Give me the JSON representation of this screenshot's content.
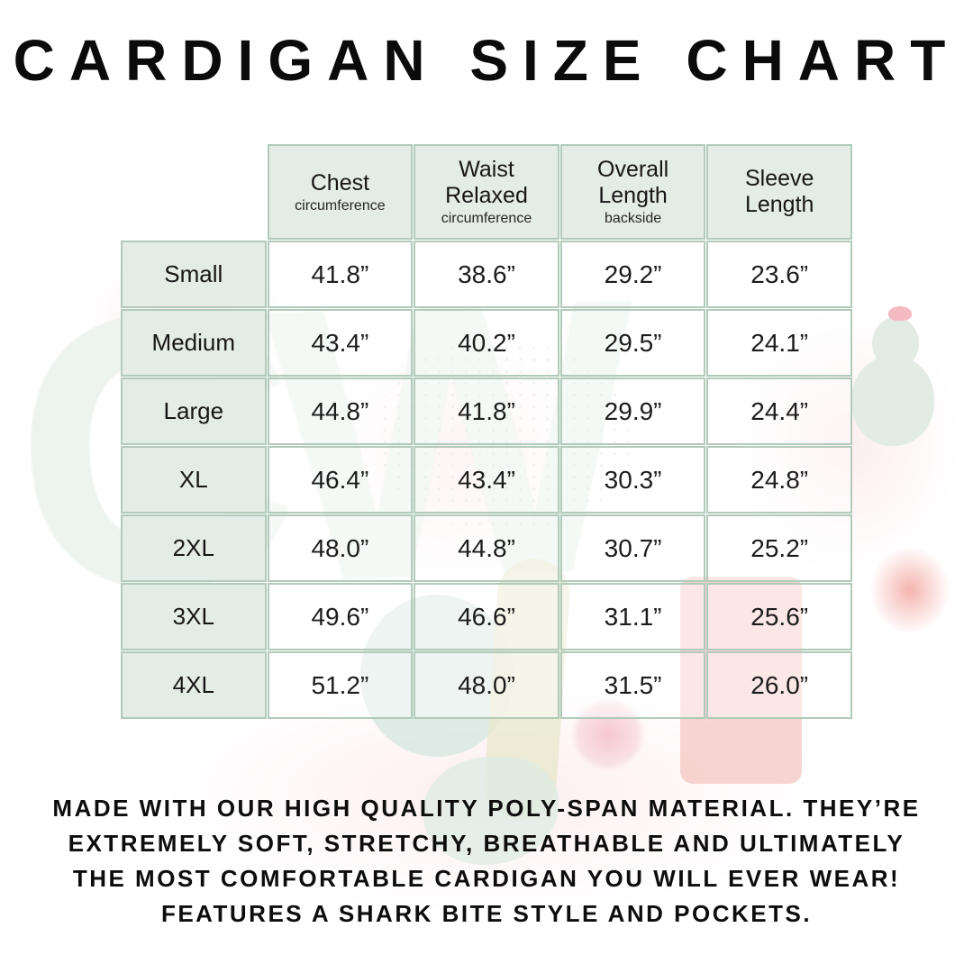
{
  "title": "CARDIGAN SIZE CHART",
  "table": {
    "columns": [
      {
        "label": "Chest",
        "sub": "circumference"
      },
      {
        "label": "Waist Relaxed",
        "sub": "circumference"
      },
      {
        "label": "Overall Length",
        "sub": "backside"
      },
      {
        "label": "Sleeve Length",
        "sub": ""
      }
    ],
    "rows": [
      {
        "size": "Small",
        "values": [
          "41.8”",
          "38.6”",
          "29.2”",
          "23.6”"
        ]
      },
      {
        "size": "Medium",
        "values": [
          "43.4”",
          "40.2”",
          "29.5”",
          "24.1”"
        ]
      },
      {
        "size": "Large",
        "values": [
          "44.8”",
          "41.8”",
          "29.9”",
          "24.4”"
        ]
      },
      {
        "size": "XL",
        "values": [
          "46.4”",
          "43.4”",
          "30.3”",
          "24.8”"
        ]
      },
      {
        "size": "2XL",
        "values": [
          "48.0”",
          "44.8”",
          "30.7”",
          "25.2”"
        ]
      },
      {
        "size": "3XL",
        "values": [
          "49.6”",
          "46.6”",
          "31.1”",
          "25.6”"
        ]
      },
      {
        "size": "4XL",
        "values": [
          "51.2”",
          "48.0”",
          "31.5”",
          "26.0”"
        ]
      }
    ]
  },
  "description_lines": [
    "MADE WITH OUR HIGH QUALITY POLY-SPAN MATERIAL. THEY’RE",
    "EXTREMELY SOFT, STRETCHY, BREATHABLE AND ULTIMATELY",
    "THE MOST COMFORTABLE CARDIGAN YOU WILL EVER WEAR!",
    "FEATURES A SHARK BITE STYLE AND POCKETS."
  ],
  "watermark": {
    "letters": "CW"
  },
  "colors": {
    "table_border": "#b2cab9",
    "header_fill": "#e4ece6",
    "text": "#1c1c1c",
    "watermark_mint": "#edf4ef",
    "watermark_pink": "#fbe7ea"
  }
}
